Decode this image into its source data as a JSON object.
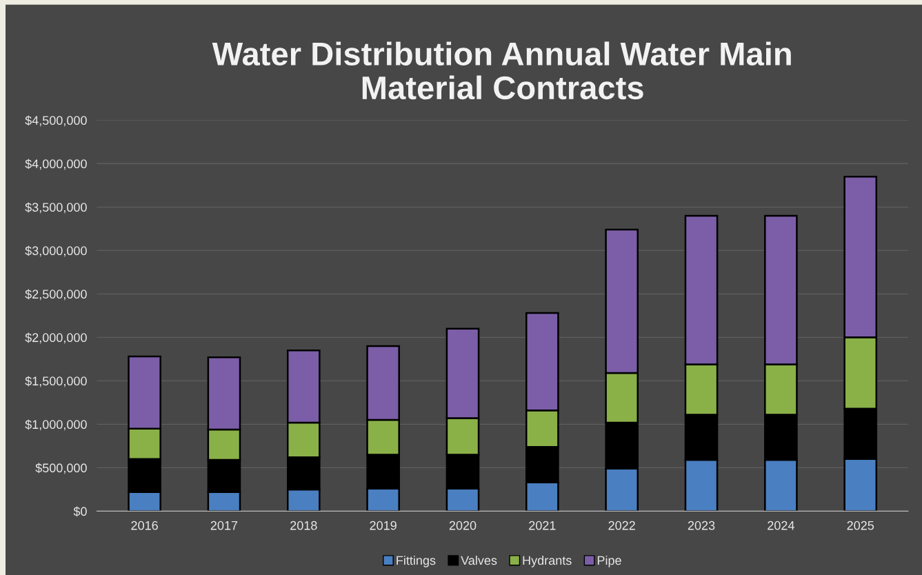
{
  "chart_data": {
    "type": "bar",
    "title": "Water Distribution Annual Water Main\nMaterial Contracts",
    "stacked": true,
    "categories": [
      "2016",
      "2017",
      "2018",
      "2019",
      "2020",
      "2021",
      "2022",
      "2023",
      "2024",
      "2025"
    ],
    "series": [
      {
        "name": "Fittings",
        "color": "#4a7fc1",
        "values": [
          220000,
          220000,
          250000,
          260000,
          260000,
          330000,
          490000,
          590000,
          590000,
          600000
        ]
      },
      {
        "name": "Valves",
        "color": "#000000",
        "values": [
          380000,
          370000,
          370000,
          390000,
          390000,
          410000,
          530000,
          520000,
          520000,
          580000
        ]
      },
      {
        "name": "Hydrants",
        "color": "#8ab048",
        "values": [
          350000,
          350000,
          400000,
          400000,
          420000,
          420000,
          570000,
          580000,
          580000,
          820000
        ]
      },
      {
        "name": "Pipe",
        "color": "#7b5ea7",
        "values": [
          830000,
          830000,
          830000,
          850000,
          1030000,
          1120000,
          1650000,
          1710000,
          1710000,
          1850000
        ]
      }
    ],
    "ylim": [
      0,
      4500000
    ],
    "yticks": [
      {
        "value": 0,
        "label": "$0"
      },
      {
        "value": 500000,
        "label": "$500,000"
      },
      {
        "value": 1000000,
        "label": "$1,000,000"
      },
      {
        "value": 1500000,
        "label": "$1,500,000"
      },
      {
        "value": 2000000,
        "label": "$2,000,000"
      },
      {
        "value": 2500000,
        "label": "$2,500,000"
      },
      {
        "value": 3000000,
        "label": "$3,000,000"
      },
      {
        "value": 3500000,
        "label": "$3,500,000"
      },
      {
        "value": 4000000,
        "label": "$4,000,000"
      },
      {
        "value": 4500000,
        "label": "$4,500,000"
      }
    ],
    "grid": "y",
    "legend": "bottom"
  }
}
